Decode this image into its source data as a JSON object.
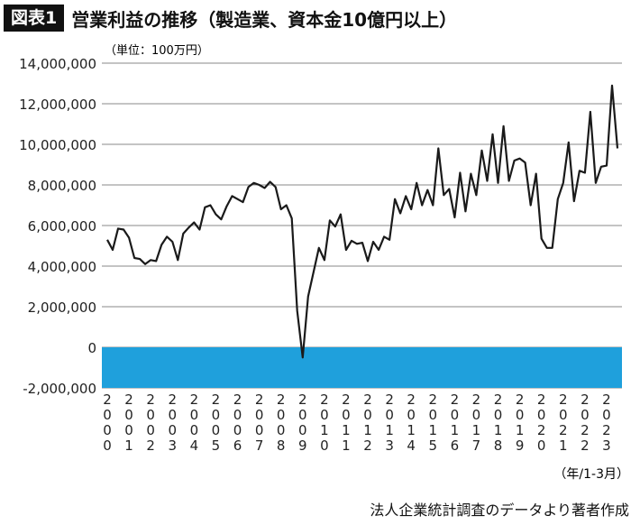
{
  "header": {
    "badge": "図表1",
    "title": "営業利益の推移（製造業、資本金10億円以上）"
  },
  "footer": {
    "source": "法人企業統計調査のデータより著者作成"
  },
  "colors": {
    "line": "#1a1a1a",
    "negative_band": "#1fa0dc",
    "grid": "#888888"
  },
  "chart_data": {
    "type": "line",
    "unit_label": "（単位：100万円）",
    "xlabel": "（年/1-3月）",
    "ylim": [
      -2000000,
      14000000
    ],
    "yticks": [
      14000000,
      12000000,
      10000000,
      8000000,
      6000000,
      4000000,
      2000000,
      0,
      -2000000
    ],
    "ytick_labels": [
      "14,000,000",
      "12,000,000",
      "10,000,000",
      "8,000,000",
      "6,000,000",
      "4,000,000",
      "2,000,000",
      "0",
      "-2,000,000"
    ],
    "xtick_labels": [
      "2000",
      "2001",
      "2002",
      "2003",
      "2004",
      "2005",
      "2006",
      "2007",
      "2008",
      "2009",
      "2010",
      "2011",
      "2012",
      "2013",
      "2014",
      "2015",
      "2016",
      "2017",
      "2018",
      "2019",
      "2020",
      "2021",
      "2022",
      "2023"
    ],
    "x_start_year": 2000,
    "points_per_year": 4,
    "negative_region": [
      -2000000,
      0
    ],
    "series": [
      {
        "values": [
          5300000,
          4800000,
          5850000,
          5800000,
          5400000,
          4400000,
          4350000,
          4100000,
          4300000,
          4250000,
          5050000,
          5450000,
          5200000,
          4300000,
          5600000,
          5900000,
          6150000,
          5800000,
          6900000,
          7000000,
          6550000,
          6300000,
          6950000,
          7450000,
          7300000,
          7150000,
          7900000,
          8100000,
          8000000,
          7850000,
          8150000,
          7900000,
          6800000,
          7000000,
          6350000,
          1800000,
          -500000,
          2500000,
          3700000,
          4900000,
          4300000,
          6250000,
          5950000,
          6550000,
          4800000,
          5250000,
          5100000,
          5150000,
          4250000,
          5200000,
          4800000,
          5450000,
          5300000,
          7300000,
          6600000,
          7450000,
          6800000,
          8100000,
          7000000,
          7750000,
          7000000,
          9800000,
          7500000,
          7800000,
          6400000,
          8600000,
          6700000,
          8550000,
          7500000,
          9700000,
          8200000,
          10500000,
          8100000,
          10900000,
          8200000,
          9200000,
          9300000,
          9100000,
          7000000,
          8550000,
          5350000,
          4900000,
          4900000,
          7300000,
          8100000,
          10100000,
          7200000,
          8700000,
          8600000,
          11600000,
          8100000,
          8900000,
          8950000,
          12900000,
          9800000
        ]
      }
    ]
  }
}
